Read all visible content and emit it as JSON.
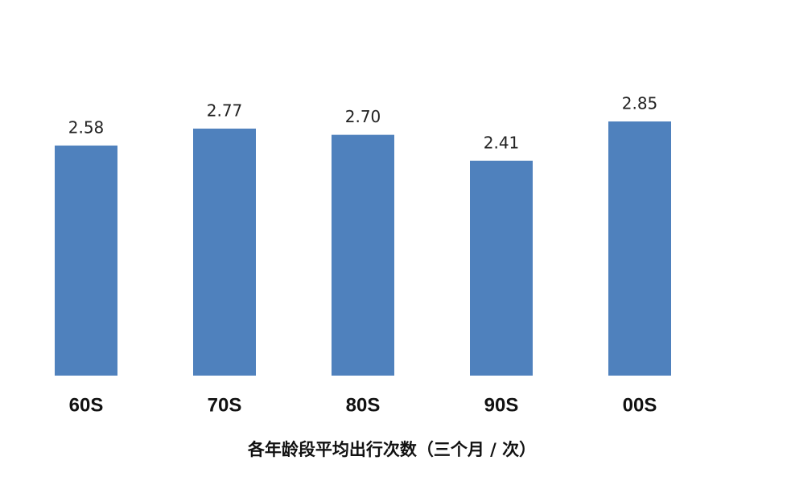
{
  "chart_data": {
    "type": "bar",
    "title": "各年龄段平均出行次数（三个月 / 次）",
    "categories": [
      "60S",
      "70S",
      "80S",
      "90S",
      "00S"
    ],
    "values": [
      2.58,
      2.77,
      2.7,
      2.41,
      2.85
    ],
    "value_labels": [
      "2.58",
      "2.77",
      "2.70",
      "2.41",
      "2.85"
    ],
    "color": "#4f81bd"
  }
}
